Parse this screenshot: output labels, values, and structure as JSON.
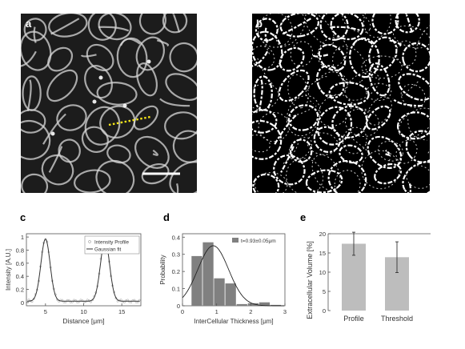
{
  "panels": {
    "a": {
      "label": "a"
    },
    "b": {
      "label": "b"
    },
    "c": {
      "label": "c"
    },
    "d": {
      "label": "d"
    },
    "e": {
      "label": "e"
    }
  },
  "colors": {
    "micrograph_bg": "#000000",
    "membrane": "#d8d8d8",
    "binary_white": "#ffffff",
    "profile_line": "#f5e51a",
    "bar_gray": "#808080",
    "bar_light": "#bdbdbd"
  },
  "chart_data": [
    {
      "panel": "c",
      "type": "line",
      "title": "",
      "xlabel": "Distance [μm]",
      "ylabel": "Intensity [A.U.]",
      "xlim": [
        2.5,
        17.5
      ],
      "ylim": [
        -0.05,
        1.05
      ],
      "xticks": [
        "5",
        "10",
        "15"
      ],
      "xtick_values": [
        5,
        10,
        15
      ],
      "yticks": [
        "0",
        "0.2",
        "0.4",
        "0.6",
        "0.8",
        "1"
      ],
      "ytick_values": [
        0,
        0.2,
        0.4,
        0.6,
        0.8,
        1
      ],
      "legend": {
        "placement": "top-right",
        "entries": [
          "Intensity Profile",
          "Gaussian fit"
        ]
      },
      "series": [
        {
          "name": "Intensity Profile",
          "style": "markers",
          "peaks": [
            {
              "center": 5.0,
              "amplitude": 0.96,
              "sigma": 0.6
            },
            {
              "center": 12.8,
              "amplitude": 0.94,
              "sigma": 0.6
            }
          ],
          "baseline": 0.02
        },
        {
          "name": "Gaussian fit",
          "style": "line",
          "peaks": [
            {
              "center": 5.0,
              "amplitude": 0.95,
              "sigma": 0.6
            },
            {
              "center": 12.8,
              "amplitude": 0.93,
              "sigma": 0.6
            }
          ],
          "baseline": 0.02
        }
      ]
    },
    {
      "panel": "d",
      "type": "bar",
      "title": "",
      "xlabel": "InterCellular Thickness [μm]",
      "ylabel": "Probability",
      "xlim": [
        0,
        3
      ],
      "ylim": [
        0,
        0.42
      ],
      "xticks": [
        "0",
        "1",
        "2",
        "3"
      ],
      "xtick_values": [
        0,
        1,
        2,
        3
      ],
      "yticks": [
        "0",
        "0.1",
        "0.2",
        "0.3",
        "0.4"
      ],
      "ytick_values": [
        0,
        0.1,
        0.2,
        0.3,
        0.4
      ],
      "legend": {
        "placement": "top-right",
        "entries": [
          "t=0.93±0.05μm"
        ]
      },
      "bin_width": 0.33,
      "bin_centers": [
        0.42,
        0.75,
        1.08,
        1.41,
        1.74,
        2.07,
        2.4,
        2.73
      ],
      "values": [
        0.29,
        0.37,
        0.16,
        0.13,
        0.01,
        0.015,
        0.02,
        0.005
      ],
      "fit": {
        "type": "gaussian",
        "center": 0.9,
        "amplitude": 0.35,
        "sigma": 0.45
      }
    },
    {
      "panel": "e",
      "type": "bar",
      "title": "",
      "xlabel": "",
      "ylabel": "Extracellular Volume [%]",
      "ylim": [
        0,
        20
      ],
      "yticks": [
        "0",
        "5",
        "10",
        "15",
        "20"
      ],
      "ytick_values": [
        0,
        5,
        10,
        15,
        20
      ],
      "categories": [
        "Profile",
        "Threshold"
      ],
      "values": [
        17.4,
        13.9
      ],
      "errors": [
        3.0,
        4.0
      ]
    }
  ]
}
